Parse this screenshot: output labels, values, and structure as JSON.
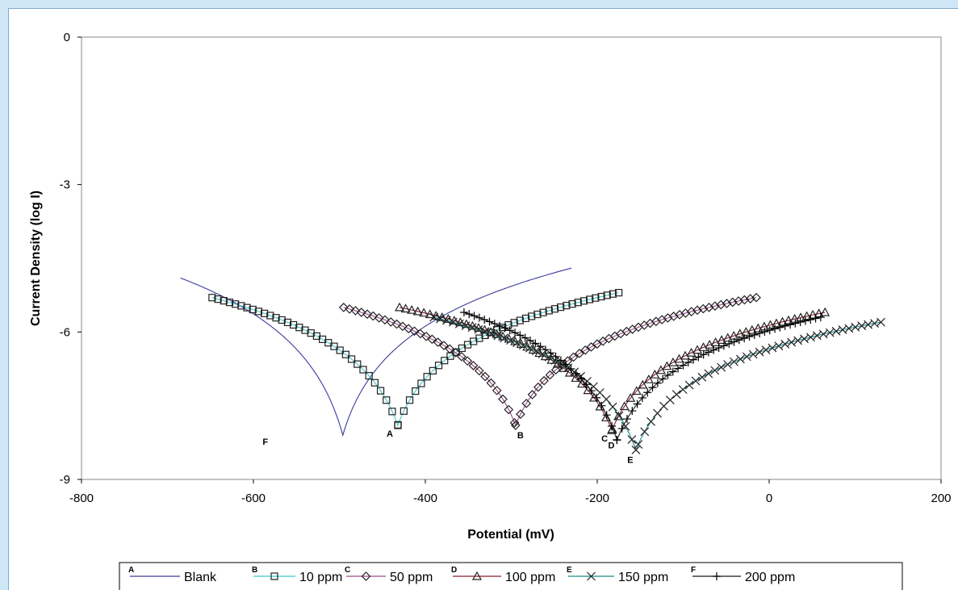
{
  "chart_data": {
    "type": "line",
    "title": "",
    "xlabel": "Potential (mV)",
    "ylabel": "Current Density (log I)",
    "xlim": [
      -800,
      200
    ],
    "ylim": [
      -9,
      0
    ],
    "x_ticks": [
      "-800",
      "-600",
      "-400",
      "-200",
      "0",
      "200"
    ],
    "y_ticks": [
      "0",
      "-3",
      "-6",
      "-9"
    ],
    "grid": false,
    "legend_position": "bottom",
    "series": [
      {
        "letter": "A",
        "name": "Blank",
        "color": "#3b3b9c",
        "marker": "none",
        "x_start": -685,
        "x_end": -230,
        "ecorr": -496,
        "i_min": -8.1,
        "y_start": -4.9,
        "y_end": -4.7,
        "curve_label": "F"
      },
      {
        "letter": "B",
        "name": "10 ppm",
        "color": "#3cc8c8",
        "marker": "square",
        "x_start": -648,
        "x_end": -175,
        "ecorr": -432,
        "i_min": -7.9,
        "y_start": -5.3,
        "y_end": -5.2,
        "curve_label": "A"
      },
      {
        "letter": "C",
        "name": "50 ppm",
        "color": "#9a4a8a",
        "marker": "diamond",
        "x_start": -495,
        "x_end": -15,
        "ecorr": -295,
        "i_min": -7.9,
        "y_start": -5.5,
        "y_end": -5.3,
        "curve_label": "B"
      },
      {
        "letter": "D",
        "name": "100 ppm",
        "color": "#8b1a2a",
        "marker": "triangle",
        "x_start": -430,
        "x_end": 65,
        "ecorr": -183,
        "i_min": -8.0,
        "y_start": -5.5,
        "y_end": -5.6,
        "curve_label": "C"
      },
      {
        "letter": "E",
        "name": "150 ppm",
        "color": "#1a8a8a",
        "marker": "x",
        "x_start": -390,
        "x_end": 130,
        "ecorr": -155,
        "i_min": -8.4,
        "y_start": -5.7,
        "y_end": -5.8,
        "curve_label": "E"
      },
      {
        "letter": "F",
        "name": "200 ppm",
        "color": "#1a1a1a",
        "marker": "plus",
        "x_start": -355,
        "x_end": 60,
        "ecorr": -177,
        "i_min": -8.2,
        "y_start": -5.6,
        "y_end": -5.7,
        "curve_label": "D"
      }
    ]
  }
}
